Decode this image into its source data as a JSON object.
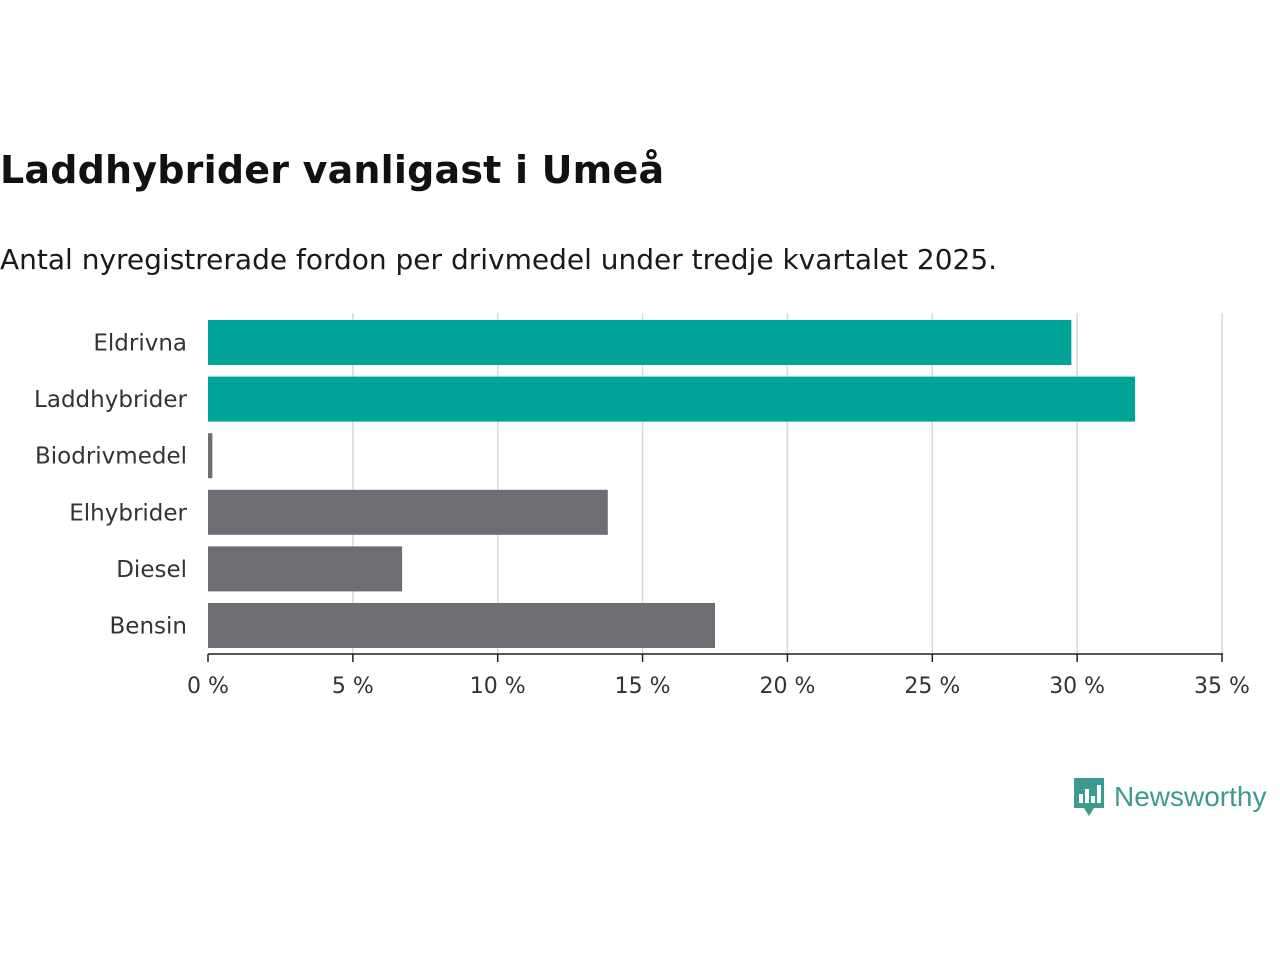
{
  "title": "Laddhybrider vanligast i Umeå",
  "subtitle": "Antal nyregistrerade fordon per drivmedel under tredje kvartalet 2025.",
  "brand": {
    "name": "Newsworthy",
    "color": "#3c9a8e",
    "icon": "bar-chart-speech-bubble-icon"
  },
  "colors": {
    "highlight": "#00a398",
    "default": "#6e6d74",
    "grid": "#d9d9d9",
    "axis": "#222222"
  },
  "chart_data": {
    "type": "bar",
    "orientation": "horizontal",
    "categories": [
      "Eldrivna",
      "Laddhybrider",
      "Biodrivmedel",
      "Elhybrider",
      "Diesel",
      "Bensin"
    ],
    "values": [
      29.8,
      32.0,
      0.15,
      13.8,
      6.7,
      17.5
    ],
    "highlighted": [
      true,
      true,
      false,
      false,
      false,
      false
    ],
    "xlim": [
      0,
      35
    ],
    "xticks": [
      0,
      5,
      10,
      15,
      20,
      25,
      30,
      35
    ],
    "tick_labels": [
      "0 %",
      "5 %",
      "10 %",
      "15 %",
      "20 %",
      "25 %",
      "30 %",
      "35 %"
    ],
    "xlabel": "",
    "ylabel": "",
    "grid": true,
    "legend": "none"
  }
}
